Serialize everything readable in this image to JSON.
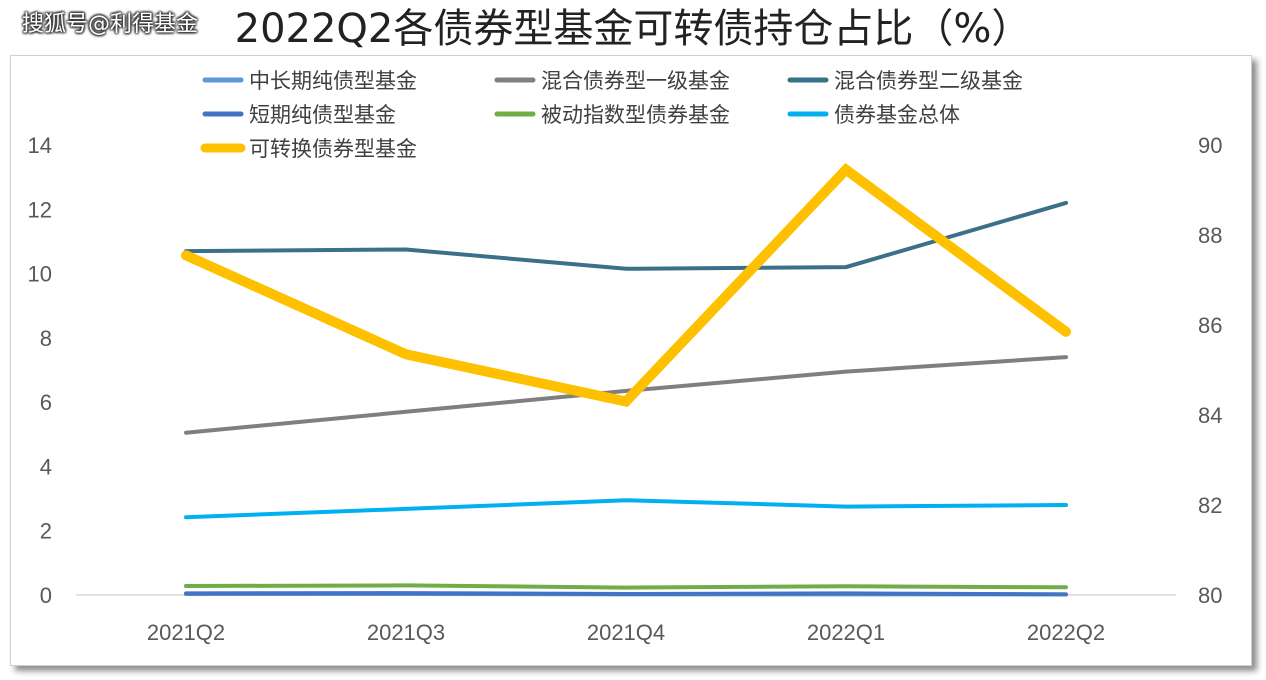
{
  "title": "2022Q2各债券型基金可转债持仓占比（%）",
  "watermark": "搜狐号@利得基金",
  "chart_data": {
    "type": "line",
    "title": "2022Q2各债券型基金可转债持仓占比（%）",
    "categories": [
      "2021Q2",
      "2021Q3",
      "2021Q4",
      "2022Q1",
      "2022Q2"
    ],
    "y_left": {
      "ticks": [
        "0",
        "2",
        "4",
        "6",
        "8",
        "10",
        "12",
        "14"
      ],
      "ylim": [
        0,
        14
      ]
    },
    "y_right": {
      "ticks": [
        "80",
        "82",
        "84",
        "86",
        "88",
        "90"
      ],
      "ylim": [
        80,
        90
      ]
    },
    "legend_position": "top",
    "grid": false,
    "series": [
      {
        "name": "中长期纯债型基金",
        "axis": "left",
        "color": "#5b9bd5",
        "width": 4,
        "values": [
          0.03,
          0.03,
          0.02,
          0.02,
          0.02
        ]
      },
      {
        "name": "混合债券型一级基金",
        "axis": "left",
        "color": "#7f7f7f",
        "width": 4,
        "values": [
          5.05,
          5.7,
          6.35,
          6.95,
          7.4
        ]
      },
      {
        "name": "混合债券型二级基金",
        "axis": "left",
        "color": "#3a7089",
        "width": 4,
        "values": [
          10.7,
          10.75,
          10.15,
          10.2,
          12.2
        ]
      },
      {
        "name": "短期纯债型基金",
        "axis": "left",
        "color": "#4472c4",
        "width": 4,
        "values": [
          0.05,
          0.06,
          0.03,
          0.05,
          0.02
        ]
      },
      {
        "name": "被动指数型债券基金",
        "axis": "left",
        "color": "#70ad47",
        "width": 4,
        "values": [
          0.28,
          0.3,
          0.23,
          0.27,
          0.24
        ]
      },
      {
        "name": "债券基金总体",
        "axis": "left",
        "color": "#00b0f0",
        "width": 4,
        "values": [
          2.42,
          2.68,
          2.95,
          2.75,
          2.8
        ]
      },
      {
        "name": "可转换债券型基金",
        "axis": "right",
        "color": "#ffc000",
        "width": 10,
        "values": [
          87.55,
          85.35,
          84.3,
          89.45,
          85.85
        ]
      }
    ]
  }
}
